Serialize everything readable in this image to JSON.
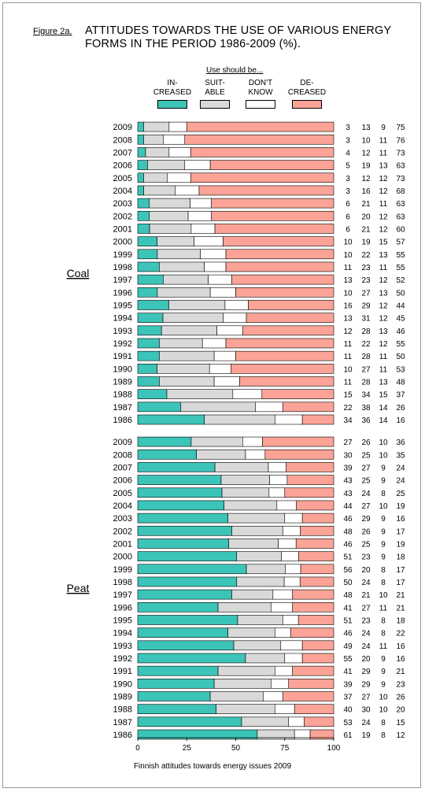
{
  "figure_label": "Figure 2a.",
  "title_line1": "ATTITUDES TOWARDS THE USE OF VARIOUS ENERGY",
  "title_line2": "FORMS IN THE PERIOD 1986-2009 (%).",
  "legend_title": "Use should be...",
  "footer": "Finnish attitudes towards energy issues 2009",
  "colors": {
    "increased": "#3cc4b8",
    "suitable": "#d9d9d9",
    "dont_know": "#ffffff",
    "decreased": "#fba396"
  },
  "chart_data": {
    "type": "bar",
    "orientation": "horizontal",
    "stacked": true,
    "xlim": [
      0,
      100
    ],
    "x_ticks": [
      "0",
      "25",
      "50",
      "75",
      "100"
    ],
    "legend": [
      {
        "key": "increased",
        "label": "IN-\nCREASED"
      },
      {
        "key": "suitable",
        "label": "SUIT-\nABLE"
      },
      {
        "key": "dont_know",
        "label": "DON'T\nKNOW"
      },
      {
        "key": "decreased",
        "label": "DE-\nCREASED"
      }
    ],
    "groups": [
      {
        "name": "Coal",
        "years": [
          "2009",
          "2008",
          "2007",
          "2006",
          "2005",
          "2004",
          "2003",
          "2002",
          "2001",
          "2000",
          "1999",
          "1998",
          "1997",
          "1996",
          "1995",
          "1994",
          "1993",
          "1992",
          "1991",
          "1990",
          "1989",
          "1988",
          "1987",
          "1986"
        ],
        "values": [
          [
            3,
            13,
            9,
            75
          ],
          [
            3,
            10,
            11,
            76
          ],
          [
            4,
            12,
            11,
            73
          ],
          [
            5,
            19,
            13,
            63
          ],
          [
            3,
            12,
            12,
            73
          ],
          [
            3,
            16,
            12,
            68
          ],
          [
            6,
            21,
            11,
            63
          ],
          [
            6,
            20,
            12,
            63
          ],
          [
            6,
            21,
            12,
            60
          ],
          [
            10,
            19,
            15,
            57
          ],
          [
            10,
            22,
            13,
            55
          ],
          [
            11,
            23,
            11,
            55
          ],
          [
            13,
            23,
            12,
            52
          ],
          [
            10,
            27,
            13,
            50
          ],
          [
            16,
            29,
            12,
            44
          ],
          [
            13,
            31,
            12,
            45
          ],
          [
            12,
            28,
            13,
            46
          ],
          [
            11,
            22,
            12,
            55
          ],
          [
            11,
            28,
            11,
            50
          ],
          [
            10,
            27,
            11,
            53
          ],
          [
            11,
            28,
            13,
            48
          ],
          [
            15,
            34,
            15,
            37
          ],
          [
            22,
            38,
            14,
            26
          ],
          [
            34,
            36,
            14,
            16
          ]
        ]
      },
      {
        "name": "Peat",
        "years": [
          "2009",
          "2008",
          "2007",
          "2006",
          "2005",
          "2004",
          "2003",
          "2002",
          "2001",
          "2000",
          "1999",
          "1998",
          "1997",
          "1996",
          "1995",
          "1994",
          "1993",
          "1992",
          "1991",
          "1990",
          "1989",
          "1988",
          "1987",
          "1986"
        ],
        "values": [
          [
            27,
            26,
            10,
            36
          ],
          [
            30,
            25,
            10,
            35
          ],
          [
            39,
            27,
            9,
            24
          ],
          [
            43,
            25,
            9,
            24
          ],
          [
            43,
            24,
            8,
            25
          ],
          [
            44,
            27,
            10,
            19
          ],
          [
            46,
            29,
            9,
            16
          ],
          [
            48,
            26,
            9,
            17
          ],
          [
            46,
            25,
            9,
            19
          ],
          [
            51,
            23,
            9,
            18
          ],
          [
            56,
            20,
            8,
            17
          ],
          [
            50,
            24,
            8,
            17
          ],
          [
            48,
            21,
            10,
            21
          ],
          [
            41,
            27,
            11,
            21
          ],
          [
            51,
            23,
            8,
            18
          ],
          [
            46,
            24,
            8,
            22
          ],
          [
            49,
            24,
            11,
            16
          ],
          [
            55,
            20,
            9,
            16
          ],
          [
            41,
            29,
            9,
            21
          ],
          [
            39,
            29,
            9,
            23
          ],
          [
            37,
            27,
            10,
            26
          ],
          [
            40,
            30,
            10,
            20
          ],
          [
            53,
            24,
            8,
            15
          ],
          [
            61,
            19,
            8,
            12
          ]
        ]
      }
    ]
  }
}
